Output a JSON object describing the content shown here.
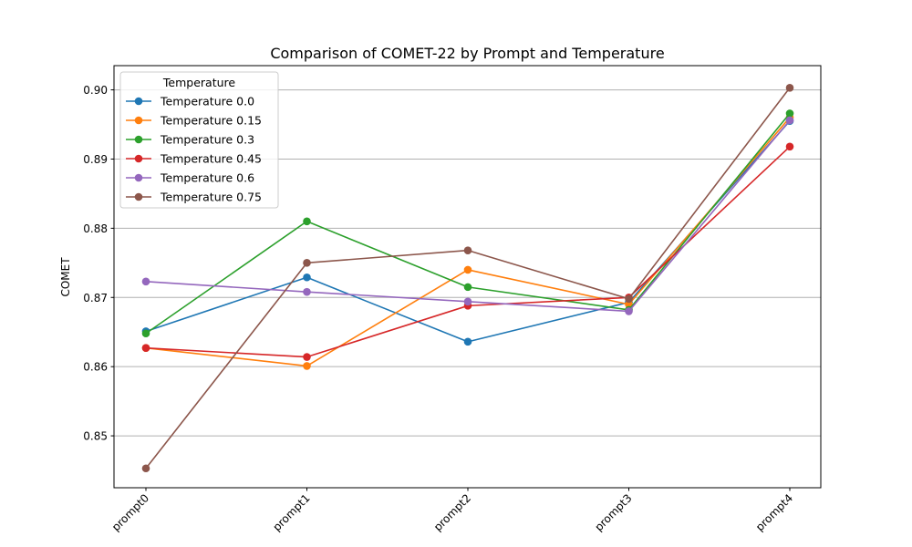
{
  "chart_data": {
    "type": "line",
    "title": "Comparison of COMET-22 by Prompt and Temperature",
    "xlabel": "",
    "ylabel": "COMET",
    "categories": [
      "prompt0",
      "prompt1",
      "prompt2",
      "prompt3",
      "prompt4"
    ],
    "ylim": [
      0.8425,
      0.9035
    ],
    "yticks": [
      0.85,
      0.86,
      0.87,
      0.88,
      0.89,
      0.9
    ],
    "ytick_labels": [
      "0.85",
      "0.86",
      "0.87",
      "0.88",
      "0.89",
      "0.90"
    ],
    "grid": "horizontal",
    "legend": {
      "title": "Temperature",
      "placement": "top-left"
    },
    "series": [
      {
        "name": "Temperature 0.0",
        "color": "#1f77b4",
        "values": [
          0.8651,
          0.8729,
          0.8636,
          0.8693,
          0.8955
        ]
      },
      {
        "name": "Temperature 0.15",
        "color": "#ff7f0e",
        "values": [
          0.8627,
          0.8601,
          0.874,
          0.869,
          0.896
        ]
      },
      {
        "name": "Temperature 0.3",
        "color": "#2ca02c",
        "values": [
          0.8648,
          0.881,
          0.8715,
          0.8682,
          0.8966
        ]
      },
      {
        "name": "Temperature 0.45",
        "color": "#d62728",
        "values": [
          0.8627,
          0.8614,
          0.8688,
          0.87,
          0.8918
        ]
      },
      {
        "name": "Temperature 0.6",
        "color": "#9467bd",
        "values": [
          0.8723,
          0.8708,
          0.8694,
          0.868,
          0.8956
        ]
      },
      {
        "name": "Temperature 0.75",
        "color": "#8c564b",
        "values": [
          0.8453,
          0.875,
          0.8768,
          0.8698,
          0.9003
        ]
      }
    ]
  }
}
